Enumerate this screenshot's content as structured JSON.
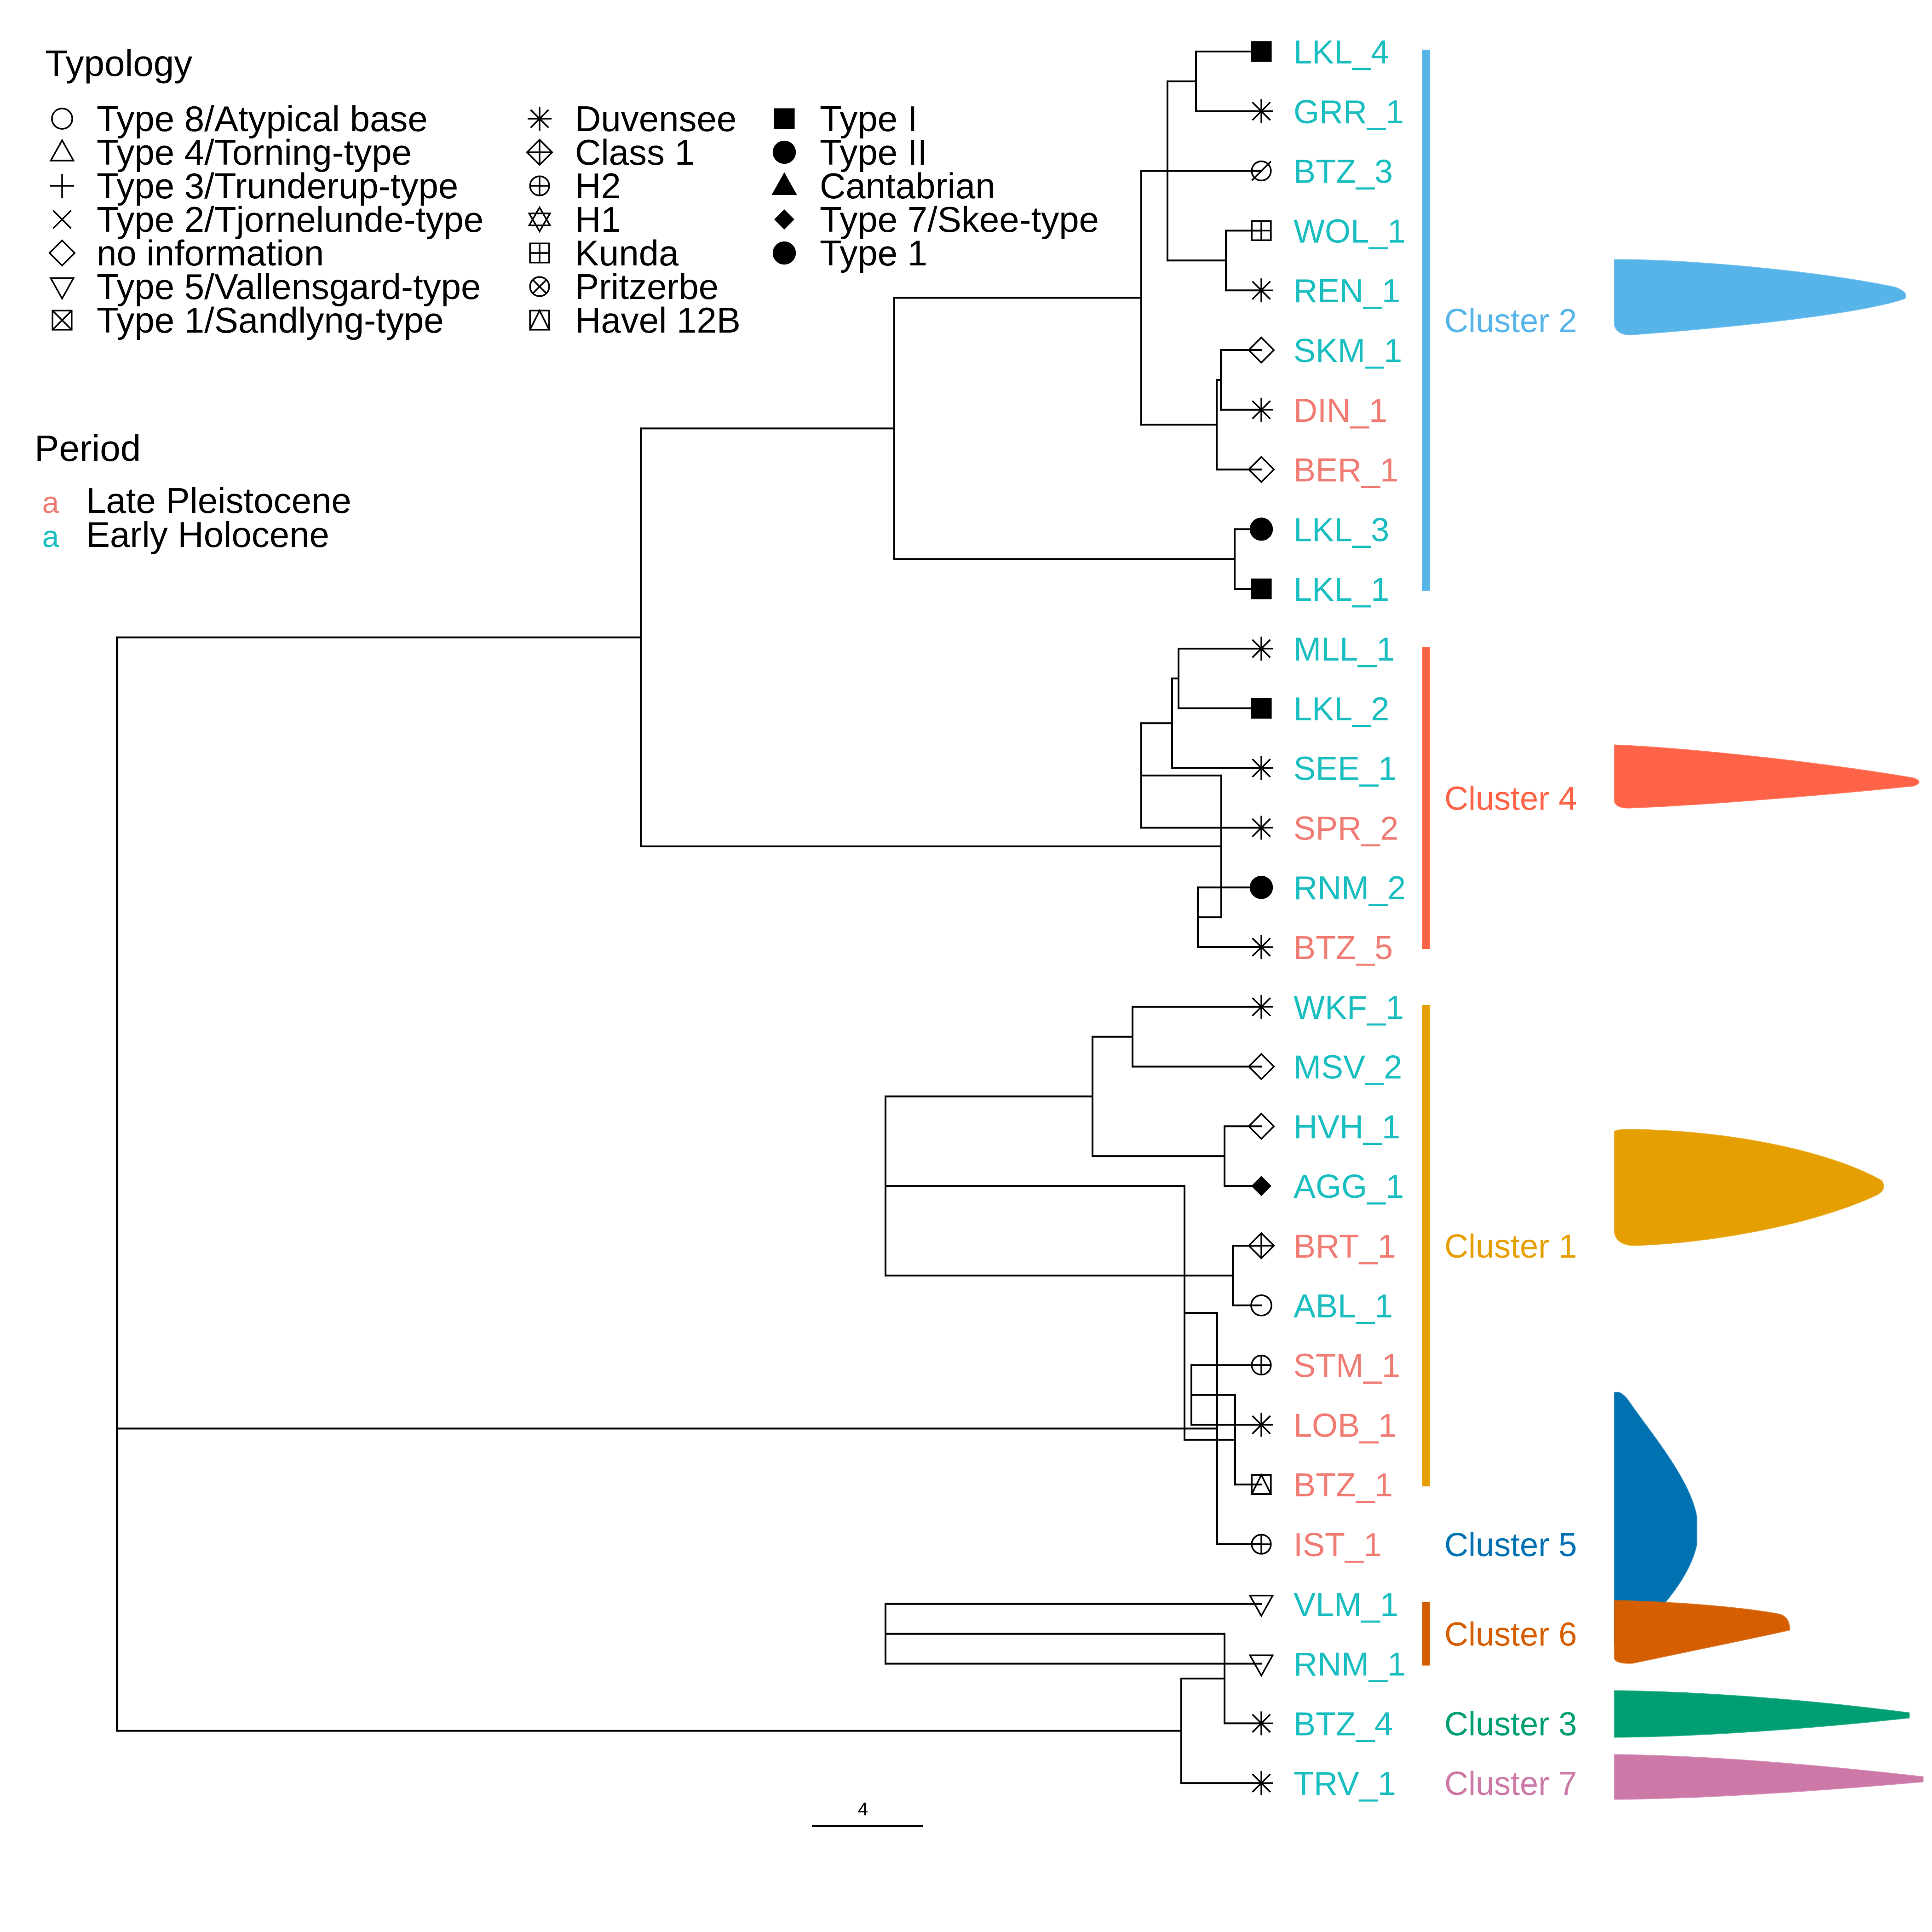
{
  "colors": {
    "late_pleistocene": "#F07C74",
    "early_holocene": "#1BBEC0",
    "cluster_1": "#E69F00",
    "cluster_2": "#56B4E9",
    "cluster_3": "#009E73",
    "cluster_4": "#FF6347",
    "cluster_5": "#0072B2",
    "cluster_6": "#D55E00",
    "cluster_7": "#CC79A7"
  },
  "typology_legend": {
    "title": "Typology",
    "col1": [
      {
        "symbol": "circle-open",
        "label": "Type 8/Atypical base"
      },
      {
        "symbol": "triangle-open",
        "label": "Type 4/Torning-type"
      },
      {
        "symbol": "plus",
        "label": "Type 3/Trunderup-type"
      },
      {
        "symbol": "cross",
        "label": "Type 2/Tjornelunde-type"
      },
      {
        "symbol": "diamond-open",
        "label": "no information"
      },
      {
        "symbol": "triangle-down-open",
        "label": "Type 5/Vallensgard-type"
      },
      {
        "symbol": "square-x",
        "label": "Type 1/Sandlyng-type"
      }
    ],
    "col2": [
      {
        "symbol": "asterisk",
        "label": "Duvensee"
      },
      {
        "symbol": "diamond-plus",
        "label": "Class 1"
      },
      {
        "symbol": "circle-plus",
        "label": "H2"
      },
      {
        "symbol": "star-of-david",
        "label": "H1"
      },
      {
        "symbol": "square-plus",
        "label": "Kunda"
      },
      {
        "symbol": "circle-x",
        "label": "Pritzerbe"
      },
      {
        "symbol": "square-triangle",
        "label": "Havel 12B"
      }
    ],
    "col3": [
      {
        "symbol": "square-filled",
        "label": "Type I"
      },
      {
        "symbol": "circle-filled",
        "label": "Type II"
      },
      {
        "symbol": "triangle-filled",
        "label": "Cantabrian"
      },
      {
        "symbol": "diamond-filled",
        "label": "Type 7/Skee-type"
      },
      {
        "symbol": "circle-filled",
        "label": "Type 1"
      }
    ]
  },
  "period_legend": {
    "title": "Period",
    "key_glyph": "a",
    "items": [
      {
        "label": "Late Pleistocene",
        "period": "late_pleistocene"
      },
      {
        "label": "Early Holocene",
        "period": "early_holocene"
      }
    ]
  },
  "tips": [
    {
      "label": "LKL_4",
      "period": "early_holocene",
      "symbol": "square-filled"
    },
    {
      "label": "GRR_1",
      "period": "early_holocene",
      "symbol": "asterisk"
    },
    {
      "label": "BTZ_3",
      "period": "early_holocene",
      "symbol": "circle-slash"
    },
    {
      "label": "WOL_1",
      "period": "early_holocene",
      "symbol": "square-plus"
    },
    {
      "label": "REN_1",
      "period": "early_holocene",
      "symbol": "asterisk"
    },
    {
      "label": "SKM_1",
      "period": "early_holocene",
      "symbol": "diamond-open"
    },
    {
      "label": "DIN_1",
      "period": "late_pleistocene",
      "symbol": "asterisk"
    },
    {
      "label": "BER_1",
      "period": "late_pleistocene",
      "symbol": "diamond-open"
    },
    {
      "label": "LKL_3",
      "period": "early_holocene",
      "symbol": "circle-filled"
    },
    {
      "label": "LKL_1",
      "period": "early_holocene",
      "symbol": "square-filled"
    },
    {
      "label": "MLL_1",
      "period": "early_holocene",
      "symbol": "asterisk"
    },
    {
      "label": "LKL_2",
      "period": "early_holocene",
      "symbol": "square-filled"
    },
    {
      "label": "SEE_1",
      "period": "early_holocene",
      "symbol": "asterisk"
    },
    {
      "label": "SPR_2",
      "period": "late_pleistocene",
      "symbol": "asterisk"
    },
    {
      "label": "RNM_2",
      "period": "early_holocene",
      "symbol": "circle-filled"
    },
    {
      "label": "BTZ_5",
      "period": "late_pleistocene",
      "symbol": "asterisk"
    },
    {
      "label": "WKF_1",
      "period": "early_holocene",
      "symbol": "asterisk"
    },
    {
      "label": "MSV_2",
      "period": "early_holocene",
      "symbol": "diamond-open"
    },
    {
      "label": "HVH_1",
      "period": "early_holocene",
      "symbol": "diamond-open"
    },
    {
      "label": "AGG_1",
      "period": "early_holocene",
      "symbol": "diamond-filled"
    },
    {
      "label": "BRT_1",
      "period": "late_pleistocene",
      "symbol": "diamond-plus"
    },
    {
      "label": "ABL_1",
      "period": "early_holocene",
      "symbol": "circle-open"
    },
    {
      "label": "STM_1",
      "period": "late_pleistocene",
      "symbol": "circle-plus"
    },
    {
      "label": "LOB_1",
      "period": "late_pleistocene",
      "symbol": "asterisk"
    },
    {
      "label": "BTZ_1",
      "period": "late_pleistocene",
      "symbol": "square-triangle"
    },
    {
      "label": "IST_1",
      "period": "late_pleistocene",
      "symbol": "circle-plus"
    },
    {
      "label": "VLM_1",
      "period": "early_holocene",
      "symbol": "triangle-down-open"
    },
    {
      "label": "RNM_1",
      "period": "early_holocene",
      "symbol": "triangle-down-open"
    },
    {
      "label": "BTZ_4",
      "period": "early_holocene",
      "symbol": "asterisk"
    },
    {
      "label": "TRV_1",
      "period": "early_holocene",
      "symbol": "asterisk"
    }
  ],
  "tree": {
    "c": [
      {
        "c": [
          {
            "c": [
              {
                "c": [
                  {
                    "c": [
                      {
                        "c": [
                          {
                            "t": 0
                          },
                          {
                            "t": 1
                          }
                        ]
                      },
                      {
                        "t": 2
                      },
                      {
                        "c": [
                          {
                            "t": 3
                          },
                          {
                            "t": 4
                          }
                        ]
                      }
                    ]
                  },
                  {
                    "c": [
                      {
                        "c": [
                          {
                            "t": 5
                          },
                          {
                            "t": 6
                          }
                        ]
                      },
                      {
                        "t": 7
                      }
                    ]
                  }
                ]
              },
              {
                "c": [
                  {
                    "t": 8
                  },
                  {
                    "t": 9
                  }
                ]
              }
            ]
          },
          {
            "c": [
              {
                "c": [
                  {
                    "c": [
                      {
                        "c": [
                          {
                            "t": 10
                          },
                          {
                            "t": 11
                          }
                        ]
                      },
                      {
                        "t": 12
                      }
                    ]
                  },
                  {
                    "t": 13
                  }
                ]
              },
              {
                "c": [
                  {
                    "t": 14
                  },
                  {
                    "t": 15
                  }
                ]
              }
            ]
          }
        ]
      },
      {
        "c": [
          {
            "c": [
              {
                "c": [
                  {
                    "c": [
                      {
                        "c": [
                          {
                            "t": 16
                          },
                          {
                            "t": 17
                          }
                        ]
                      },
                      {
                        "c": [
                          {
                            "t": 18
                          },
                          {
                            "t": 19
                          }
                        ]
                      }
                    ]
                  },
                  {
                    "c": [
                      {
                        "t": 20
                      },
                      {
                        "t": 21
                      }
                    ]
                  }
                ]
              },
              {
                "c": [
                  {
                    "c": [
                      {
                        "t": 22
                      },
                      {
                        "t": 23
                      }
                    ]
                  },
                  {
                    "t": 24
                  }
                ]
              }
            ]
          },
          {
            "t": 25
          }
        ]
      },
      {
        "c": [
          {
            "c": [
              {
                "c": [
                  {
                    "t": 26
                  },
                  {
                    "t": 27
                  }
                ]
              },
              {
                "t": 28
              }
            ]
          },
          {
            "t": 29
          }
        ]
      }
    ]
  },
  "clusters": [
    {
      "label": "Cluster 2",
      "color_key": "cluster_2",
      "from": 0,
      "to": 9,
      "bar": true
    },
    {
      "label": "Cluster 4",
      "color_key": "cluster_4",
      "from": 10,
      "to": 15,
      "bar": true
    },
    {
      "label": "Cluster 1",
      "color_key": "cluster_1",
      "from": 16,
      "to": 24,
      "bar": true
    },
    {
      "label": "Cluster 5",
      "color_key": "cluster_5",
      "from": 25,
      "to": 25,
      "bar": false
    },
    {
      "label": "Cluster 6",
      "color_key": "cluster_6",
      "from": 26,
      "to": 27,
      "bar": true
    },
    {
      "label": "Cluster 3",
      "color_key": "cluster_3",
      "from": 28,
      "to": 28,
      "bar": false
    },
    {
      "label": "Cluster 7",
      "color_key": "cluster_7",
      "from": 29,
      "to": 29,
      "bar": false
    }
  ],
  "scale_bar": {
    "label": "4"
  }
}
